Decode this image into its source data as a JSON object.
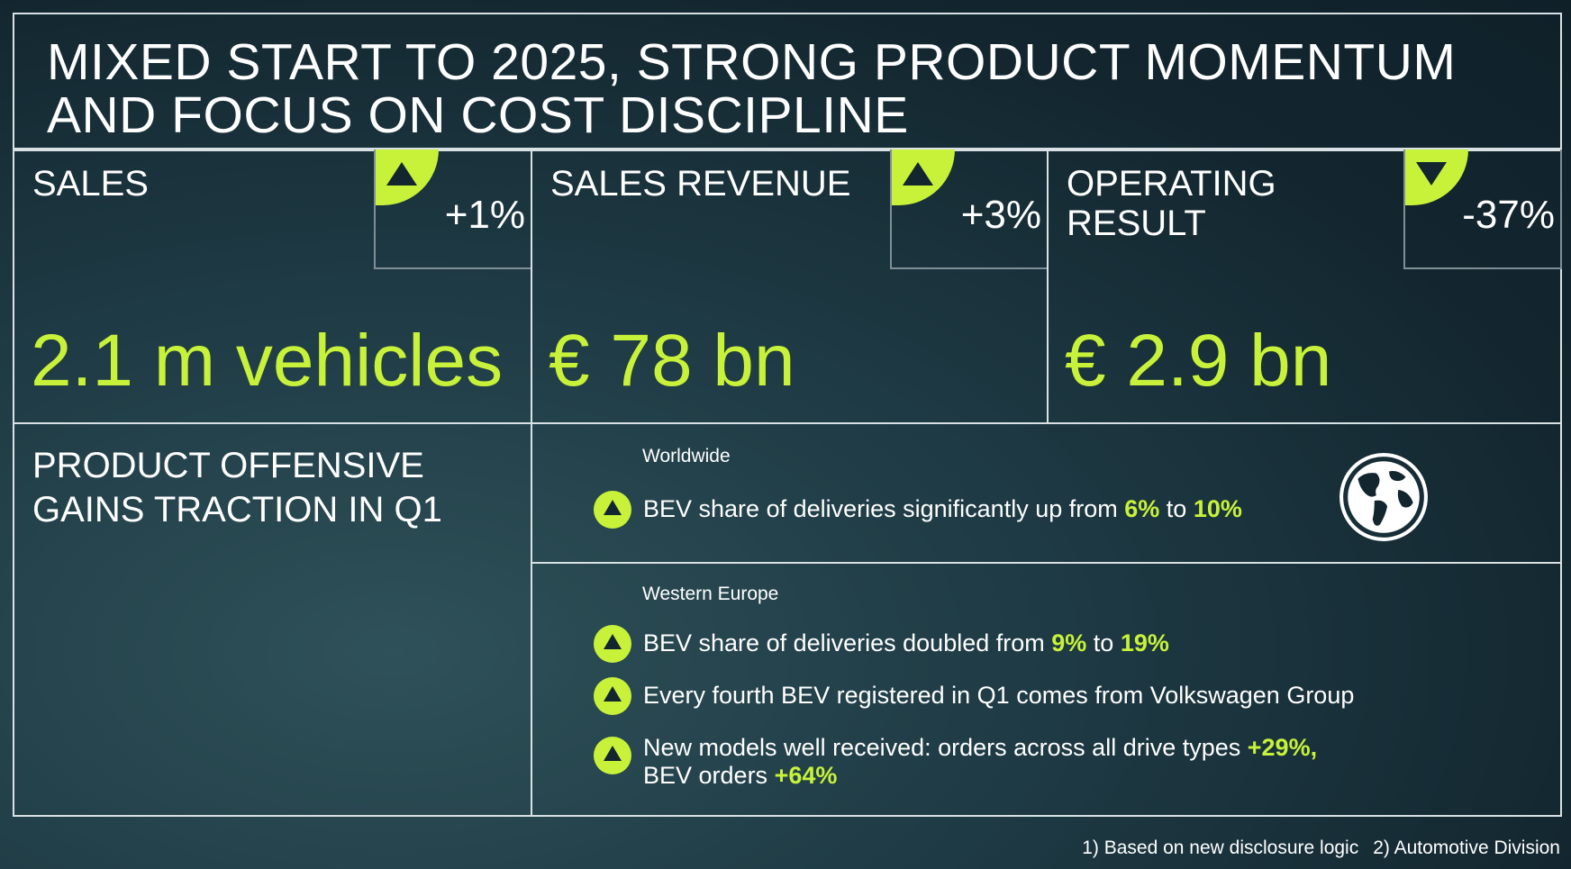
{
  "title": {
    "line1": "MIXED START TO 2025, STRONG PRODUCT MOMENTUM",
    "line2": "AND FOCUS ON COST DISCIPLINE"
  },
  "kpis": [
    {
      "label": "SALES",
      "label_line2": "",
      "change": "+1%",
      "direction": "up",
      "value": "2.1 m vehicles"
    },
    {
      "label": "SALES REVENUE",
      "label_line2": "",
      "change": "+3%",
      "direction": "up",
      "value": "€ 78 bn"
    },
    {
      "label": "OPERATING",
      "label_line2": "RESULT",
      "change": "-37%",
      "direction": "down",
      "value": "€ 2.9 bn"
    }
  ],
  "product": {
    "heading_line1": "PRODUCT OFFENSIVE",
    "heading_line2": "GAINS TRACTION IN Q1"
  },
  "worldwide": {
    "region": "Worldwide",
    "bullet": {
      "text_a": "BEV share of deliveries significantly up from ",
      "hl_a": "6%",
      "text_b": " to ",
      "hl_b": "10%"
    }
  },
  "western_europe": {
    "region": "Western Europe",
    "bullet1": {
      "text_a": "BEV share of deliveries doubled from ",
      "hl_a": "9%",
      "text_b": " to ",
      "hl_b": "19%"
    },
    "bullet2": {
      "text": "Every fourth BEV registered in Q1 comes from Volkswagen Group"
    },
    "bullet3": {
      "text_a": "New models well received: orders across all drive types ",
      "hl_a": "+29%,",
      "text_b": "BEV orders ",
      "hl_b": "+64%"
    }
  },
  "footnotes": {
    "note1": "1)  Based on new disclosure logic",
    "note2": "2) Automotive Division"
  },
  "colors": {
    "accent": "#c8f23a",
    "background": "#13262f",
    "border": "#d9e1e4"
  },
  "icons": {
    "up": "triangle-up-icon",
    "down": "triangle-down-icon",
    "globe": "globe-icon"
  }
}
